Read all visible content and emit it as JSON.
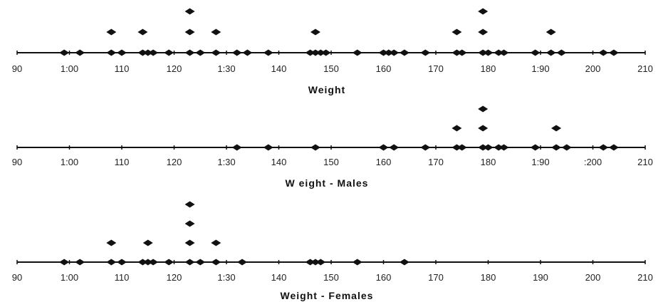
{
  "chart_data": [
    {
      "type": "dot-plot",
      "xlabel": "Weight",
      "xlim": [
        90,
        210
      ],
      "ticks": [
        90,
        100,
        110,
        120,
        130,
        140,
        150,
        160,
        170,
        180,
        190,
        200,
        210
      ],
      "tick_labels": [
        "90",
        "1:00",
        "110",
        "120",
        "1:30",
        "140",
        "150",
        "160",
        "170",
        "180",
        "1:90",
        "200",
        "210"
      ],
      "points": [
        {
          "x": 99,
          "count": 1
        },
        {
          "x": 102,
          "count": 1
        },
        {
          "x": 108,
          "count": 2
        },
        {
          "x": 110,
          "count": 1
        },
        {
          "x": 114,
          "count": 2
        },
        {
          "x": 115,
          "count": 1
        },
        {
          "x": 116,
          "count": 1
        },
        {
          "x": 119,
          "count": 1
        },
        {
          "x": 123,
          "count": 3
        },
        {
          "x": 125,
          "count": 1
        },
        {
          "x": 128,
          "count": 2
        },
        {
          "x": 132,
          "count": 1
        },
        {
          "x": 134,
          "count": 1
        },
        {
          "x": 138,
          "count": 1
        },
        {
          "x": 146,
          "count": 1
        },
        {
          "x": 147,
          "count": 2
        },
        {
          "x": 148,
          "count": 1
        },
        {
          "x": 149,
          "count": 1
        },
        {
          "x": 155,
          "count": 1
        },
        {
          "x": 160,
          "count": 1
        },
        {
          "x": 161,
          "count": 1
        },
        {
          "x": 162,
          "count": 1
        },
        {
          "x": 164,
          "count": 1
        },
        {
          "x": 168,
          "count": 1
        },
        {
          "x": 174,
          "count": 2
        },
        {
          "x": 175,
          "count": 1
        },
        {
          "x": 179,
          "count": 3
        },
        {
          "x": 180,
          "count": 1
        },
        {
          "x": 182,
          "count": 1
        },
        {
          "x": 183,
          "count": 1
        },
        {
          "x": 189,
          "count": 1
        },
        {
          "x": 192,
          "count": 2
        },
        {
          "x": 194,
          "count": 1
        },
        {
          "x": 202,
          "count": 1
        },
        {
          "x": 204,
          "count": 1
        }
      ]
    },
    {
      "type": "dot-plot",
      "xlabel": "W eight - Males",
      "xlim": [
        90,
        210
      ],
      "ticks": [
        90,
        100,
        110,
        120,
        130,
        140,
        150,
        160,
        170,
        180,
        190,
        200,
        210
      ],
      "tick_labels": [
        "90",
        "1:00",
        "110",
        "120",
        "1:30",
        "140",
        "150",
        "160",
        "170",
        "180",
        "1:90",
        ":200",
        "210"
      ],
      "points": [
        {
          "x": 132,
          "count": 1
        },
        {
          "x": 138,
          "count": 1
        },
        {
          "x": 147,
          "count": 1
        },
        {
          "x": 160,
          "count": 1
        },
        {
          "x": 162,
          "count": 1
        },
        {
          "x": 168,
          "count": 1
        },
        {
          "x": 174,
          "count": 2
        },
        {
          "x": 175,
          "count": 1
        },
        {
          "x": 179,
          "count": 3
        },
        {
          "x": 180,
          "count": 1
        },
        {
          "x": 182,
          "count": 1
        },
        {
          "x": 183,
          "count": 1
        },
        {
          "x": 189,
          "count": 1
        },
        {
          "x": 193,
          "count": 2
        },
        {
          "x": 195,
          "count": 1
        },
        {
          "x": 202,
          "count": 1
        },
        {
          "x": 204,
          "count": 1
        }
      ]
    },
    {
      "type": "dot-plot",
      "xlabel": "Weight - Females",
      "xlim": [
        90,
        210
      ],
      "ticks": [
        90,
        100,
        110,
        120,
        130,
        140,
        150,
        160,
        170,
        180,
        190,
        200,
        210
      ],
      "tick_labels": [
        "90",
        "1:00",
        "110",
        "120",
        "1:30",
        "140",
        "150",
        "160",
        "170",
        "180",
        "190",
        "200",
        "210"
      ],
      "points": [
        {
          "x": 99,
          "count": 1
        },
        {
          "x": 102,
          "count": 1
        },
        {
          "x": 108,
          "count": 2
        },
        {
          "x": 110,
          "count": 1
        },
        {
          "x": 114,
          "count": 1
        },
        {
          "x": 115,
          "count": 2
        },
        {
          "x": 116,
          "count": 1
        },
        {
          "x": 119,
          "count": 1
        },
        {
          "x": 123,
          "count": 4
        },
        {
          "x": 125,
          "count": 1
        },
        {
          "x": 128,
          "count": 2
        },
        {
          "x": 133,
          "count": 1
        },
        {
          "x": 146,
          "count": 1
        },
        {
          "x": 147,
          "count": 1
        },
        {
          "x": 148,
          "count": 1
        },
        {
          "x": 155,
          "count": 1
        },
        {
          "x": 164,
          "count": 1
        }
      ]
    }
  ]
}
